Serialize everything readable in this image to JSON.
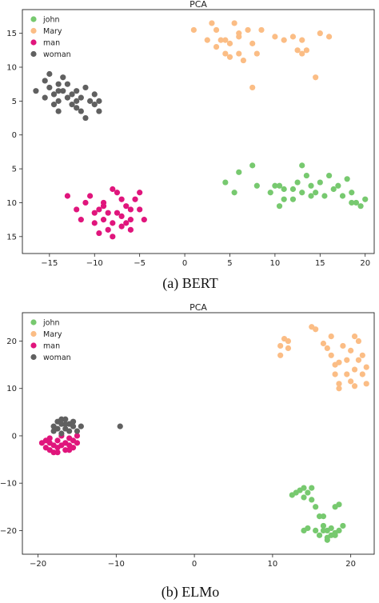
{
  "chart_data": [
    {
      "type": "scatter",
      "title": "PCA",
      "caption": "(a) BERT",
      "xlabel": "",
      "ylabel": "",
      "xlim": [
        -18,
        21
      ],
      "ylim": [
        -17.5,
        18.5
      ],
      "y_inverted_labels": true,
      "xticks": [
        -15,
        -10,
        -5,
        0,
        5,
        10,
        15,
        20
      ],
      "yticks": [
        15,
        10,
        5,
        0,
        -5,
        -10,
        -15
      ],
      "ytick_labels": [
        "15",
        "10",
        "5",
        "0",
        "5",
        "10",
        "15"
      ],
      "grid": false,
      "legend": "top-left",
      "series": [
        {
          "name": "john",
          "color": "#77c96f",
          "points": [
            [
              4.5,
              -7
            ],
            [
              5.5,
              -8.5
            ],
            [
              6,
              -5.5
            ],
            [
              7.5,
              -4.5
            ],
            [
              8,
              -7.5
            ],
            [
              9.5,
              -8.5
            ],
            [
              10,
              -7.5
            ],
            [
              10.5,
              -10.5
            ],
            [
              11,
              -9.5
            ],
            [
              12,
              -8
            ],
            [
              12.5,
              -7
            ],
            [
              13,
              -4.5
            ],
            [
              13,
              -8.5
            ],
            [
              13.5,
              -6
            ],
            [
              14,
              -7.5
            ],
            [
              14.5,
              -8.5
            ],
            [
              15,
              -7
            ],
            [
              15.5,
              -9
            ],
            [
              16,
              -6
            ],
            [
              17,
              -7.5
            ],
            [
              17.5,
              -9
            ],
            [
              18,
              -6.5
            ],
            [
              18.5,
              -8.5
            ],
            [
              19,
              -10
            ],
            [
              19.5,
              -10.5
            ],
            [
              20,
              -9.5
            ],
            [
              12,
              -9.5
            ],
            [
              10.5,
              -7.5
            ],
            [
              16.5,
              -8
            ],
            [
              18.5,
              -10
            ],
            [
              11,
              -8
            ],
            [
              14,
              -9
            ]
          ]
        },
        {
          "name": "Mary",
          "color": "#fbbd85",
          "points": [
            [
              1,
              15.5
            ],
            [
              2.5,
              14
            ],
            [
              3,
              16.5
            ],
            [
              3.5,
              15.5
            ],
            [
              3.5,
              13
            ],
            [
              4,
              14
            ],
            [
              4.5,
              14
            ],
            [
              4.5,
              12
            ],
            [
              5,
              13.5
            ],
            [
              5.5,
              16.5
            ],
            [
              6,
              14.5
            ],
            [
              6,
              12
            ],
            [
              6.5,
              11
            ],
            [
              7,
              15.5
            ],
            [
              7.5,
              13.5
            ],
            [
              7.5,
              7
            ],
            [
              8.5,
              15.5
            ],
            [
              10,
              14.5
            ],
            [
              11,
              14
            ],
            [
              12,
              14.5
            ],
            [
              12.5,
              12.5
            ],
            [
              13,
              12
            ],
            [
              13.5,
              12.5
            ],
            [
              14.5,
              8.5
            ],
            [
              15,
              15
            ],
            [
              16,
              14.5
            ],
            [
              13,
              14
            ],
            [
              8,
              12
            ],
            [
              5,
              11.5
            ],
            [
              6,
              15
            ]
          ]
        },
        {
          "name": "man",
          "color": "#e0157c",
          "points": [
            [
              -13,
              -9
            ],
            [
              -12,
              -11
            ],
            [
              -11.5,
              -12.5
            ],
            [
              -10.5,
              -9
            ],
            [
              -10,
              -13
            ],
            [
              -9.5,
              -14.5
            ],
            [
              -9.5,
              -11
            ],
            [
              -9,
              -10
            ],
            [
              -9,
              -12.5
            ],
            [
              -8.5,
              -11.5
            ],
            [
              -8.5,
              -14
            ],
            [
              -8,
              -13
            ],
            [
              -8,
              -15
            ],
            [
              -7.5,
              -8.5
            ],
            [
              -7.5,
              -11.5
            ],
            [
              -7,
              -9.5
            ],
            [
              -7,
              -12
            ],
            [
              -6.5,
              -13
            ],
            [
              -6.5,
              -10.5
            ],
            [
              -6,
              -11
            ],
            [
              -6,
              -12.5
            ],
            [
              -5.5,
              -9.5
            ],
            [
              -5,
              -11
            ],
            [
              -5,
              -8.5
            ],
            [
              -4.5,
              -12.5
            ],
            [
              -8,
              -8
            ],
            [
              -9,
              -10.5
            ],
            [
              -10,
              -11.5
            ],
            [
              -7,
              -13.5
            ],
            [
              -6,
              -14
            ],
            [
              -11,
              -10
            ]
          ]
        },
        {
          "name": "woman",
          "color": "#606060",
          "points": [
            [
              -16.5,
              6.5
            ],
            [
              -15.5,
              8
            ],
            [
              -15.5,
              5.5
            ],
            [
              -15,
              9
            ],
            [
              -15,
              7
            ],
            [
              -14.5,
              4.5
            ],
            [
              -14.5,
              6
            ],
            [
              -14,
              7.5
            ],
            [
              -14,
              5
            ],
            [
              -14,
              3.5
            ],
            [
              -13.5,
              6.5
            ],
            [
              -13,
              5.5
            ],
            [
              -13,
              7.5
            ],
            [
              -12.5,
              4.5
            ],
            [
              -12.5,
              6
            ],
            [
              -12,
              6.5
            ],
            [
              -12,
              4
            ],
            [
              -11.5,
              5.5
            ],
            [
              -11.5,
              3.5
            ],
            [
              -11,
              7
            ],
            [
              -11,
              2.5
            ],
            [
              -10.5,
              5
            ],
            [
              -10,
              6
            ],
            [
              -10,
              4.5
            ],
            [
              -9.5,
              5
            ],
            [
              -9.5,
              3.5
            ],
            [
              -13.5,
              8.5
            ],
            [
              -12,
              5
            ],
            [
              -14,
              6.5
            ]
          ]
        }
      ]
    },
    {
      "type": "scatter",
      "title": "PCA",
      "caption": "(b) ELMo",
      "xlabel": "",
      "ylabel": "",
      "xlim": [
        -22,
        23
      ],
      "ylim": [
        -25,
        26
      ],
      "xticks": [
        -20,
        -10,
        0,
        10,
        20
      ],
      "yticks": [
        20,
        10,
        0,
        -10,
        -20
      ],
      "ytick_labels": [
        "20",
        "10",
        "0",
        "−10",
        "−20"
      ],
      "grid": false,
      "legend": "top-left",
      "series": [
        {
          "name": "john",
          "color": "#77c96f",
          "points": [
            [
              12.5,
              -12.5
            ],
            [
              13,
              -12
            ],
            [
              13.5,
              -11.5
            ],
            [
              14,
              -11
            ],
            [
              14,
              -13
            ],
            [
              14.5,
              -12
            ],
            [
              15,
              -11
            ],
            [
              15,
              -13.5
            ],
            [
              15.5,
              -15
            ],
            [
              16,
              -17
            ],
            [
              16.5,
              -17
            ],
            [
              16.5,
              -19
            ],
            [
              17,
              -20
            ],
            [
              17,
              -22
            ],
            [
              17.5,
              -21
            ],
            [
              17.5,
              -19.5
            ],
            [
              18,
              -20.5
            ],
            [
              18,
              -15
            ],
            [
              18.5,
              -14.5
            ],
            [
              18.5,
              -20
            ],
            [
              19,
              -19
            ],
            [
              14,
              -20
            ],
            [
              14.5,
              -19.5
            ],
            [
              15.5,
              -20
            ],
            [
              16,
              -21
            ],
            [
              16.5,
              -20
            ],
            [
              17,
              -21.5
            ],
            [
              18,
              -21
            ]
          ]
        },
        {
          "name": "Mary",
          "color": "#fbbd85",
          "points": [
            [
              11,
              19
            ],
            [
              11,
              17
            ],
            [
              11.5,
              20.5
            ],
            [
              12,
              18.5
            ],
            [
              12,
              20
            ],
            [
              15,
              23
            ],
            [
              15.5,
              22.5
            ],
            [
              16.5,
              19.5
            ],
            [
              17,
              18.5
            ],
            [
              17.5,
              21
            ],
            [
              17.5,
              17
            ],
            [
              18,
              15
            ],
            [
              18,
              13
            ],
            [
              18.5,
              15.5
            ],
            [
              18.5,
              11
            ],
            [
              18.5,
              10
            ],
            [
              19,
              19
            ],
            [
              19.5,
              13
            ],
            [
              19.5,
              16
            ],
            [
              20,
              18
            ],
            [
              20,
              11.5
            ],
            [
              20.5,
              14
            ],
            [
              20.5,
              10.5
            ],
            [
              21,
              16
            ],
            [
              21,
              20
            ],
            [
              21.5,
              17
            ],
            [
              21.5,
              13
            ],
            [
              22,
              14.5
            ],
            [
              22,
              11
            ],
            [
              20.5,
              21
            ]
          ]
        },
        {
          "name": "man",
          "color": "#e0157c",
          "points": [
            [
              -19.5,
              -1.5
            ],
            [
              -19,
              -2.5
            ],
            [
              -19,
              -1
            ],
            [
              -18.5,
              -3
            ],
            [
              -18.5,
              -0.5
            ],
            [
              -18,
              -2
            ],
            [
              -18,
              -3.5
            ],
            [
              -17.5,
              -1
            ],
            [
              -17.5,
              -2.5
            ],
            [
              -17,
              0
            ],
            [
              -17,
              -2
            ],
            [
              -16.5,
              -1.5
            ],
            [
              -16.5,
              -3
            ],
            [
              -16,
              -0.5
            ],
            [
              -16,
              -2
            ],
            [
              -15.5,
              -1
            ],
            [
              -15.5,
              -2.5
            ],
            [
              -15,
              -1.5
            ],
            [
              -15,
              0
            ],
            [
              -17.5,
              -3.5
            ],
            [
              -16,
              -3
            ],
            [
              -18.5,
              -1.5
            ]
          ]
        },
        {
          "name": "woman",
          "color": "#606060",
          "points": [
            [
              -18,
              2
            ],
            [
              -17.5,
              3
            ],
            [
              -17.5,
              1.5
            ],
            [
              -17,
              2.5
            ],
            [
              -17,
              0.5
            ],
            [
              -16.5,
              3.5
            ],
            [
              -16.5,
              1.5
            ],
            [
              -16,
              2.5
            ],
            [
              -16,
              1
            ],
            [
              -15.5,
              3
            ],
            [
              -15.5,
              2
            ],
            [
              -15,
              1
            ],
            [
              -14.5,
              2
            ],
            [
              -9.5,
              2
            ],
            [
              -18,
              1
            ],
            [
              -16.5,
              2.5
            ],
            [
              -17,
              3.5
            ]
          ]
        }
      ]
    }
  ]
}
